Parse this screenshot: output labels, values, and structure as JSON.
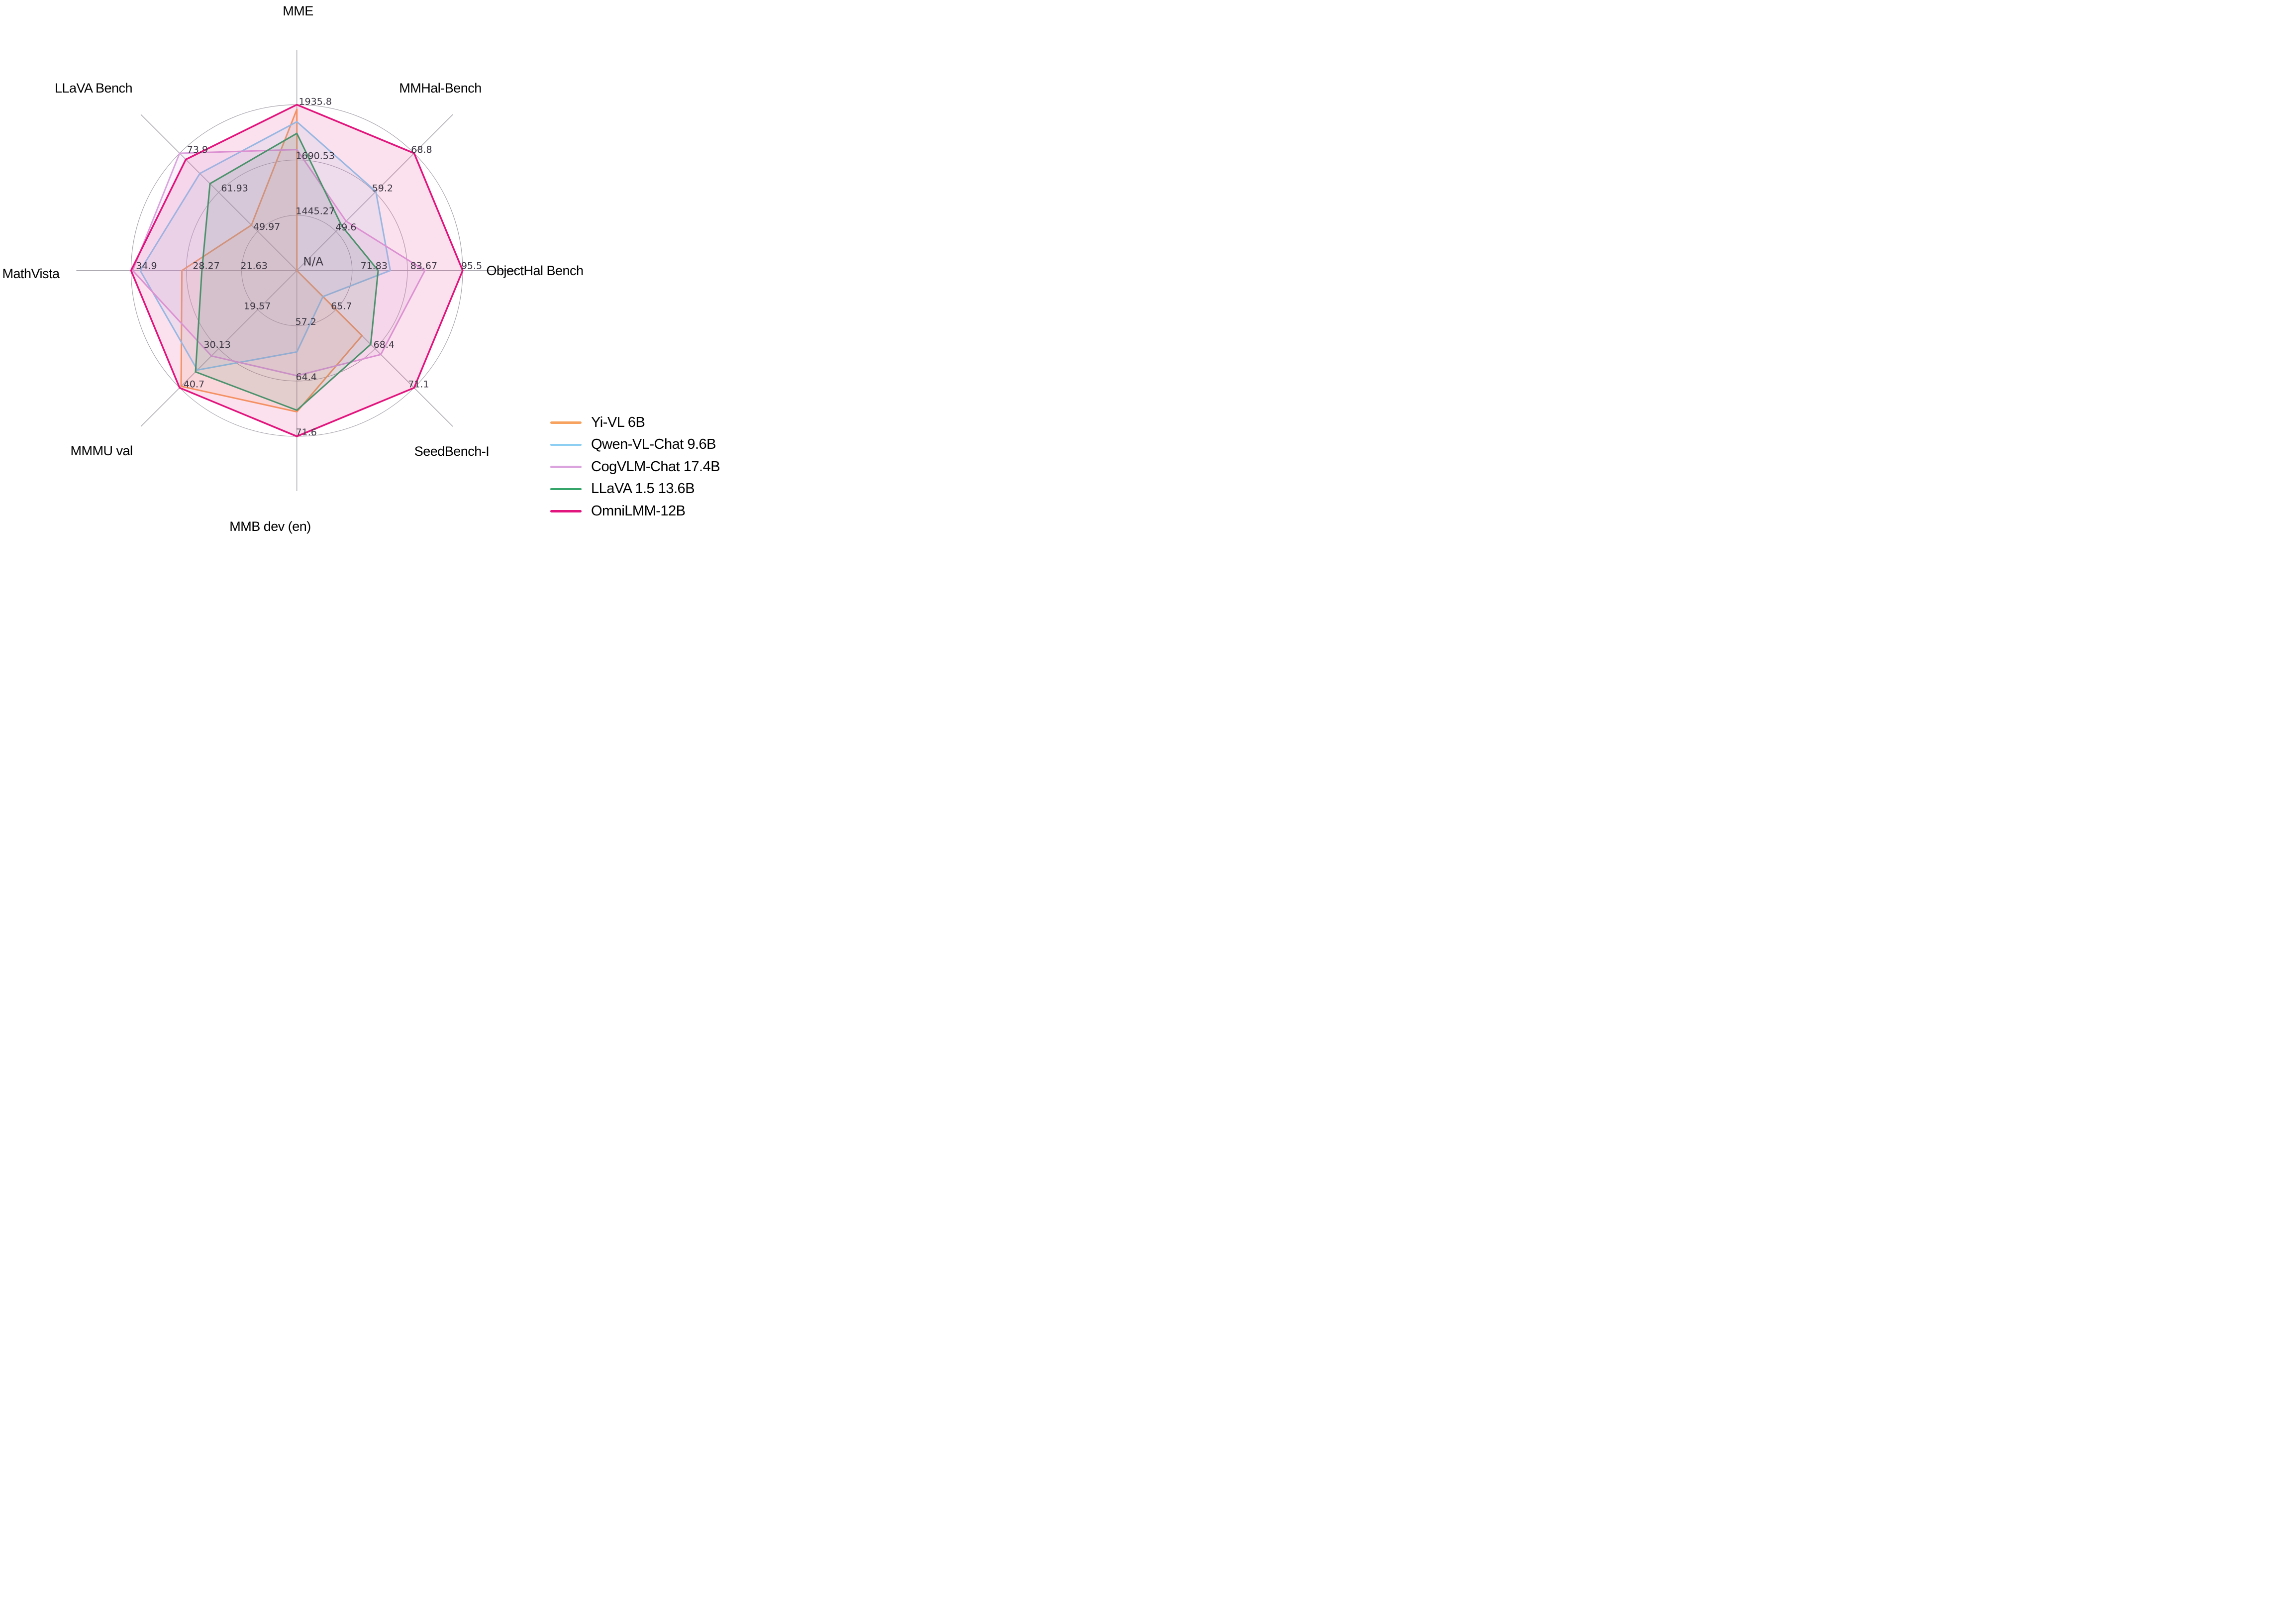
{
  "chart_data": {
    "type": "radar",
    "axes": [
      {
        "label": "MME",
        "angle_deg": 90,
        "ticks": [
          "1445.27",
          "1690.53",
          "1935.8"
        ],
        "scale": {
          "center": 1200.0,
          "outer": 1935.8
        }
      },
      {
        "label": "MMHal-Bench",
        "angle_deg": 45,
        "ticks": [
          "49.6",
          "59.2",
          "68.8"
        ],
        "scale": {
          "center": 40.0,
          "outer": 68.8
        }
      },
      {
        "label": "ObjectHal Bench",
        "angle_deg": 0,
        "ticks": [
          "71.83",
          "83.67",
          "95.5"
        ],
        "center_label": "N/A",
        "scale": {
          "center": 60.0,
          "outer": 95.5
        }
      },
      {
        "label": "SeedBench-I",
        "angle_deg": -45,
        "ticks": [
          "65.7",
          "68.4",
          "71.1"
        ],
        "scale": {
          "center": 63.0,
          "outer": 71.1
        }
      },
      {
        "label": "MMB dev (en)",
        "angle_deg": -90,
        "ticks": [
          "57.2",
          "64.4",
          "71.6"
        ],
        "scale": {
          "center": 50.0,
          "outer": 71.6
        }
      },
      {
        "label": "MMMU val",
        "angle_deg": -135,
        "ticks": [
          "19.57",
          "30.13",
          "40.7"
        ],
        "scale": {
          "center": 9.0,
          "outer": 40.7
        }
      },
      {
        "label": "MathVista",
        "angle_deg": 180,
        "ticks": [
          "21.63",
          "28.27",
          "34.9"
        ],
        "scale": {
          "center": 15.0,
          "outer": 34.9
        }
      },
      {
        "label": "LLaVA Bench",
        "angle_deg": 135,
        "ticks": [
          "49.97",
          "61.93",
          "73.9"
        ],
        "scale": {
          "center": 38.0,
          "outer": 73.9
        }
      }
    ],
    "series": [
      {
        "name": "Yi-VL 6B",
        "color": "#F7A35F",
        "values": [
          1915.1,
          null,
          null,
          67.5,
          68.4,
          40.3,
          28.8,
          51.9
        ]
      },
      {
        "name": "Qwen-VL-Chat 9.6B",
        "color": "#8DCFF2",
        "values": [
          1860.0,
          59.4,
          80.0,
          64.8,
          60.6,
          35.9,
          33.8,
          67.7
        ]
      },
      {
        "name": "CogVLM-Chat 17.4B",
        "color": "#DCA4DF",
        "values": [
          1736.6,
          52.1,
          87.4,
          68.8,
          63.7,
          32.1,
          34.7,
          73.9
        ]
      },
      {
        "name": "LLaVA 1.5 13.6B",
        "color": "#35A56A",
        "values": [
          1808.4,
          51.0,
          77.4,
          68.1,
          68.2,
          36.4,
          26.4,
          64.6
        ]
      },
      {
        "name": "OmniLMM-12B",
        "color": "#E2147D",
        "values": [
          1935.8,
          68.8,
          95.5,
          71.1,
          71.6,
          40.7,
          34.9,
          72.0
        ]
      }
    ],
    "grid": {
      "rings": 3,
      "ring_fractions": [
        0.3333,
        0.6667,
        1.0
      ],
      "spoke_extension": 1.33
    },
    "legend": {
      "position": "lower-right"
    },
    "na_plotted_at_center": true,
    "palette": {
      "grid": "#A5A1A9",
      "tick_text": "#3B3642",
      "title_text": "#000000",
      "background": "#FFFFFF"
    }
  }
}
